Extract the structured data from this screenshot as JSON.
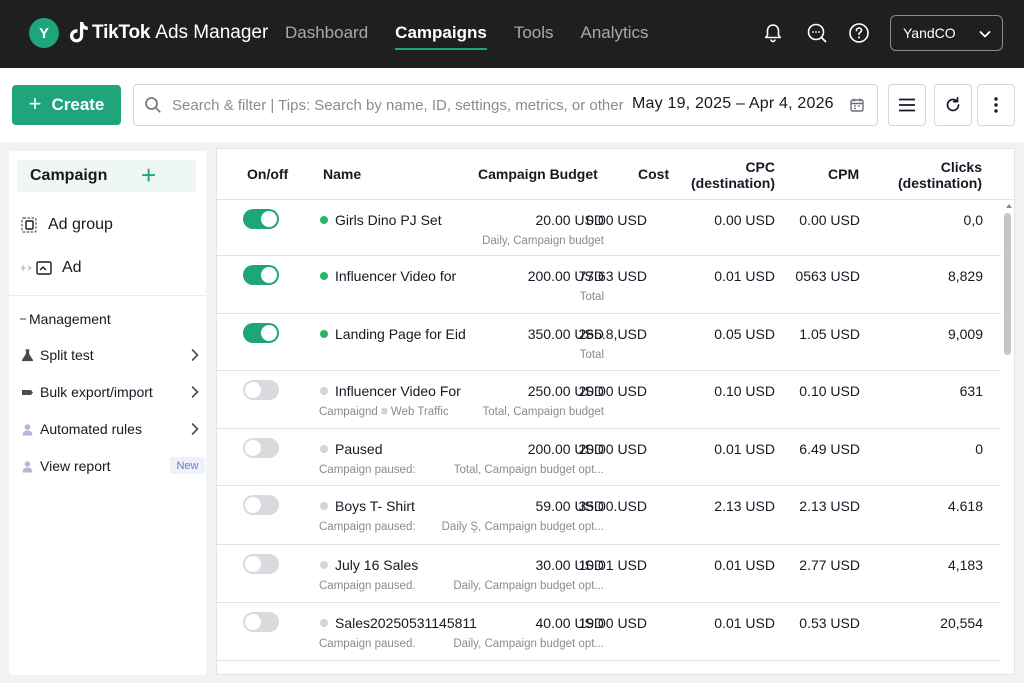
{
  "topbar": {
    "avatar_letter": "Y",
    "brand": "TikTok",
    "product": "Ads Manager",
    "nav": [
      "Dashboard",
      "Campaigns",
      "Tools",
      "Analytics"
    ],
    "active_nav": "Campaigns",
    "account": "YandCO",
    "icons": [
      "bell-icon",
      "chat-search-icon",
      "help-icon",
      "chevron-down-icon"
    ]
  },
  "toolbar": {
    "create_label": "Create",
    "search_placeholder": "Search & filter | Tips: Search by name, ID, settings, metrics, or other",
    "date_range": "May 19, 2025 – Apr 4, 2026",
    "icons": [
      "search-icon",
      "calendar-icon",
      "columns-menu-icon",
      "refresh-icon",
      "more-vertical-icon"
    ]
  },
  "sidebar": {
    "campaign": "Campaign",
    "ad_group": "Ad group",
    "ad": "Ad",
    "management": "Management",
    "items": [
      {
        "label": "Split test",
        "icon": "flask-icon"
      },
      {
        "label": "Bulk export/import",
        "icon": "export-icon"
      },
      {
        "label": "Automated rules",
        "icon": "rules-icon"
      },
      {
        "label": "View report",
        "icon": "report-icon",
        "badge": "New"
      }
    ]
  },
  "table": {
    "headers": {
      "onoff": "On/off",
      "name": "Name",
      "budget": "Campaign Budget",
      "cost": "Cost",
      "cpc": "CPC",
      "cpc_sub": "(destination)",
      "cpm": "CPM",
      "clicks": "Clicks",
      "clicks_sub": "(destination)"
    },
    "rows": [
      {
        "on": true,
        "name": "Girls Dino PJ Set",
        "status_sub": "",
        "budget": "20.00 USD",
        "budget_sub": "Daily, Campaign budget",
        "cost": "0.00 USD",
        "cpc": "0.00 USD",
        "cpm": "0.00 USD",
        "clicks": "0,0"
      },
      {
        "on": true,
        "name": "Influencer Video for",
        "status_sub": "",
        "budget": "200.00 USD",
        "budget_sub": "Total",
        "cost": "77.63 USD",
        "cpc": "0.01 USD",
        "cpm": "0563 USD",
        "clicks": "8,829"
      },
      {
        "on": true,
        "name": "Landing Page for Eid",
        "status_sub": "",
        "budget": "350.00 USD",
        "budget_sub": "Total",
        "cost": "265.8,USD",
        "cpc": "0.05 USD",
        "cpm": "1.05 USD",
        "clicks": "9,009"
      },
      {
        "on": false,
        "name": "Influencer Video For",
        "status_sub": "Campaignd ≡ Web Traffic",
        "budget": "250.00 USD",
        "budget_sub": "Total, Campaign budget",
        "cost": "20.00 USD",
        "cpc": "0.10 USD",
        "cpm": "0.10 USD",
        "clicks": "631"
      },
      {
        "on": false,
        "name": "Paused",
        "status_sub": "Campaign paused:",
        "budget": "200.00 USD",
        "budget_sub": "Total, Campaign budget opt...",
        "cost": "20.00 USD",
        "cpc": "0.01 USD",
        "cpm": "6.49 USD",
        "clicks": "0"
      },
      {
        "on": false,
        "name": "Boys T- Shirt",
        "status_sub": "Campaign paused:",
        "budget": "59.00 USD",
        "budget_sub": "Daily Ş, Campaign budget opt...",
        "cost": "35.00.USD",
        "cpc": "2.13 USD",
        "cpm": "2.13 USD",
        "clicks": "4.618"
      },
      {
        "on": false,
        "name": "July 16 Sales",
        "status_sub": "Campaign paused.",
        "budget": "30.00 USD",
        "budget_sub": "Daily, Campaign budget opt...",
        "cost": "10.01 USD",
        "cpc": "0.01 USD",
        "cpm": "2.77 USD",
        "clicks": "4,183"
      },
      {
        "on": false,
        "name": "Sales20250531145811",
        "status_sub": "Campaign paused.",
        "budget": "40.00 USD",
        "budget_sub": "Daily, Campaign budget opt...",
        "cost": "19.00 USD",
        "cpc": "0.01 USD",
        "cpm": "0.53 USD",
        "clicks": "20,554"
      }
    ]
  },
  "colors": {
    "accent": "#1ea57c",
    "topbar_bg": "#1f1f1f",
    "toggle_off": "#d9dadd",
    "dot_active": "#2cb36b",
    "dot_inactive": "#d4d5d8"
  }
}
